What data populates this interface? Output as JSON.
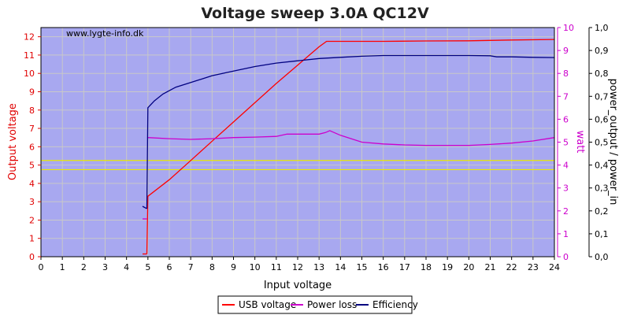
{
  "chart_data": {
    "type": "line",
    "title": "Voltage sweep 3.0A QC12V",
    "watermark": "www.lygte-info.dk",
    "xlabel": "Input voltage",
    "ylabel_left": "Output voltage",
    "ylabel_right1": "watt",
    "ylabel_right2": "power_output / power_in",
    "xlim": [
      0,
      24
    ],
    "ylim_left": [
      0,
      12.5
    ],
    "ylim_right1": [
      0,
      10
    ],
    "ylim_right2": [
      0,
      1.0
    ],
    "x_ticks": [
      "0",
      "1",
      "2",
      "3",
      "4",
      "5",
      "6",
      "7",
      "8",
      "9",
      "10",
      "11",
      "12",
      "13",
      "14",
      "15",
      "16",
      "17",
      "18",
      "19",
      "20",
      "21",
      "22",
      "23",
      "24"
    ],
    "y_left_ticks": [
      "0",
      "1",
      "2",
      "3",
      "4",
      "5",
      "6",
      "7",
      "8",
      "9",
      "10",
      "11",
      "12"
    ],
    "y_right1_ticks": [
      "0",
      "1",
      "2",
      "3",
      "4",
      "5",
      "6",
      "7",
      "8",
      "9",
      "10"
    ],
    "y_right2_ticks": [
      "0,0",
      "0,1",
      "0,2",
      "0,3",
      "0,4",
      "0,5",
      "0,6",
      "0,7",
      "0,8",
      "0,9",
      "1,0"
    ],
    "reference_lines": [
      4.75,
      5.25
    ],
    "colors": {
      "plot_bg": "#a8a8f0",
      "grid": "#c8c8c8",
      "usb_voltage": "#ff0000",
      "power_loss": "#cc00cc",
      "efficiency": "#000080",
      "reference": "#e8e800",
      "left_axis": "#e00000",
      "right1_axis": "#cc00cc",
      "right2_axis": "#000000"
    },
    "series": [
      {
        "name": "USB voltage",
        "axis": "left",
        "segments": [
          [
            [
              4.75,
              0.15
            ],
            [
              4.95,
              0.15
            ]
          ],
          [
            [
              4.95,
              0.15
            ],
            [
              5.0,
              3.3
            ],
            [
              6.0,
              4.2
            ],
            [
              7.0,
              5.25
            ],
            [
              8.0,
              6.3
            ],
            [
              9.0,
              7.35
            ],
            [
              10.0,
              8.4
            ],
            [
              11.0,
              9.45
            ],
            [
              12.0,
              10.45
            ],
            [
              13.0,
              11.45
            ],
            [
              13.35,
              11.75
            ],
            [
              14,
              11.75
            ],
            [
              16,
              11.75
            ],
            [
              18,
              11.77
            ],
            [
              20,
              11.78
            ],
            [
              21,
              11.8
            ],
            [
              22,
              11.82
            ],
            [
              24,
              11.85
            ]
          ]
        ]
      },
      {
        "name": "Power loss",
        "axis": "right1",
        "segments": [
          [
            [
              4.75,
              1.65
            ],
            [
              4.95,
              1.65
            ]
          ],
          [
            [
              5.0,
              5.2
            ],
            [
              6,
              5.15
            ],
            [
              7,
              5.12
            ],
            [
              8,
              5.15
            ],
            [
              9,
              5.2
            ],
            [
              10,
              5.22
            ],
            [
              11,
              5.25
            ],
            [
              11.5,
              5.35
            ],
            [
              12,
              5.35
            ],
            [
              13,
              5.35
            ],
            [
              13.3,
              5.42
            ],
            [
              13.5,
              5.5
            ],
            [
              14,
              5.3
            ],
            [
              14.5,
              5.15
            ],
            [
              15,
              5.0
            ],
            [
              16,
              4.92
            ],
            [
              17,
              4.88
            ],
            [
              18,
              4.86
            ],
            [
              19,
              4.86
            ],
            [
              20,
              4.86
            ],
            [
              21,
              4.9
            ],
            [
              22,
              4.96
            ],
            [
              23,
              5.05
            ],
            [
              24,
              5.2
            ]
          ]
        ]
      },
      {
        "name": "Efficiency",
        "axis": "right2",
        "segments": [
          [
            [
              4.75,
              0.22
            ],
            [
              4.95,
              0.21
            ]
          ],
          [
            [
              4.95,
              0.21
            ],
            [
              5.0,
              0.65
            ],
            [
              5.3,
              0.68
            ],
            [
              5.7,
              0.71
            ],
            [
              6.3,
              0.74
            ],
            [
              7,
              0.76
            ],
            [
              8,
              0.79
            ],
            [
              9,
              0.81
            ],
            [
              10,
              0.83
            ],
            [
              11,
              0.845
            ],
            [
              12,
              0.855
            ],
            [
              13,
              0.865
            ],
            [
              14,
              0.87
            ],
            [
              15,
              0.875
            ],
            [
              16,
              0.878
            ],
            [
              17,
              0.878
            ],
            [
              18,
              0.878
            ],
            [
              19,
              0.878
            ],
            [
              20,
              0.878
            ],
            [
              21,
              0.877
            ],
            [
              21.3,
              0.872
            ],
            [
              22,
              0.872
            ],
            [
              23,
              0.87
            ],
            [
              24,
              0.869
            ]
          ]
        ]
      }
    ],
    "legend": {
      "placement": "bottom-center",
      "entries": [
        "USB voltage",
        "Power loss",
        "Efficiency"
      ]
    }
  }
}
